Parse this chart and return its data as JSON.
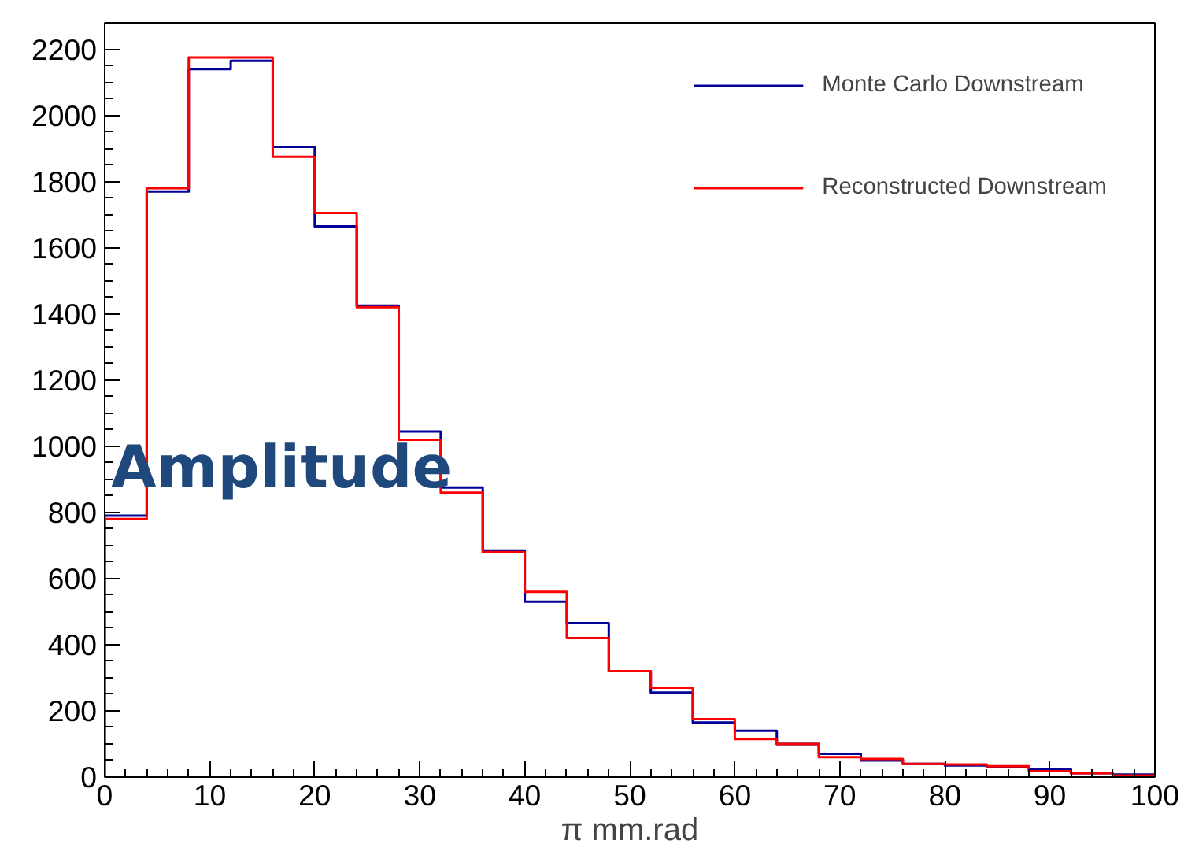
{
  "chart_data": {
    "type": "histogram",
    "xlabel": "π mm.rad",
    "annotations": [
      "Amplitude"
    ],
    "bins": [
      0,
      4,
      8,
      12,
      16,
      20,
      24,
      28,
      32,
      36,
      40,
      44,
      48,
      52,
      56,
      60,
      64,
      68,
      72,
      76,
      80,
      84,
      88,
      92,
      96,
      100
    ],
    "series": [
      {
        "name": "Monte Carlo Downstream",
        "color": "#000099",
        "values": [
          790,
          1770,
          2140,
          2165,
          1905,
          1665,
          1425,
          1045,
          875,
          685,
          530,
          465,
          320,
          255,
          165,
          140,
          100,
          70,
          50,
          40,
          35,
          30,
          25,
          12,
          8
        ]
      },
      {
        "name": "Reconstructed Downstream",
        "color": "#ff0000",
        "values": [
          780,
          1780,
          2175,
          2175,
          1875,
          1705,
          1420,
          1020,
          860,
          680,
          560,
          420,
          320,
          270,
          175,
          115,
          100,
          60,
          55,
          40,
          38,
          33,
          18,
          12,
          5
        ]
      }
    ],
    "xlim": [
      0,
      100
    ],
    "ylim": [
      0,
      2280
    ],
    "xticks": [
      0,
      10,
      20,
      30,
      40,
      50,
      60,
      70,
      80,
      90,
      100
    ],
    "yticks": [
      0,
      200,
      400,
      600,
      800,
      1000,
      1200,
      1400,
      1600,
      1800,
      2000,
      2200
    ],
    "legend": "top right",
    "grid": false
  }
}
